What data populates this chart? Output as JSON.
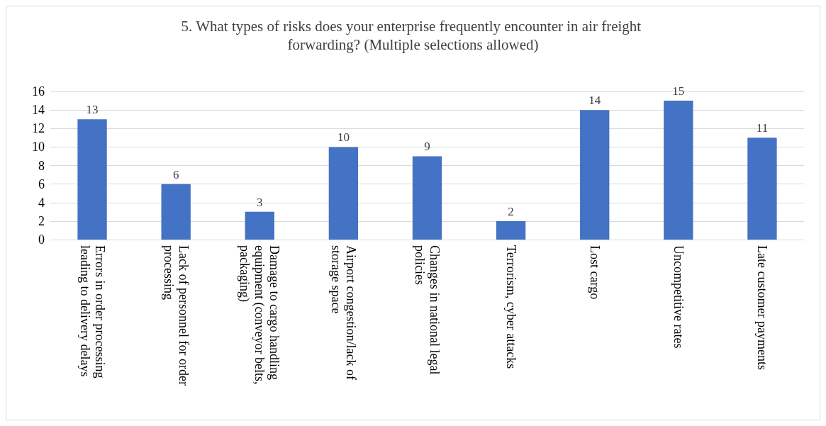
{
  "chart_data": {
    "type": "bar",
    "title": "5. What types of risks does your enterprise frequently encounter in air freight forwarding? (Multiple selections allowed)",
    "categories": [
      "Errors in order processing leading to delivery delays",
      "Lack of personnel for order processing",
      "Damage to cargo handling equipment (conveyor belts, packaging)",
      "Airport congestion/lack of storage space",
      "Changes in national legal policies",
      "Terrorism, cyber attacks",
      "Lost cargo",
      "Uncompetitive rates",
      "Late customer payments"
    ],
    "values": [
      13,
      6,
      3,
      10,
      9,
      2,
      14,
      15,
      11
    ],
    "color": "#4472c4",
    "ylim": [
      0,
      16
    ],
    "yticks": [
      0,
      2,
      4,
      6,
      8,
      10,
      12,
      14,
      16
    ],
    "grid": "y",
    "data_labels": true,
    "legend": false
  }
}
